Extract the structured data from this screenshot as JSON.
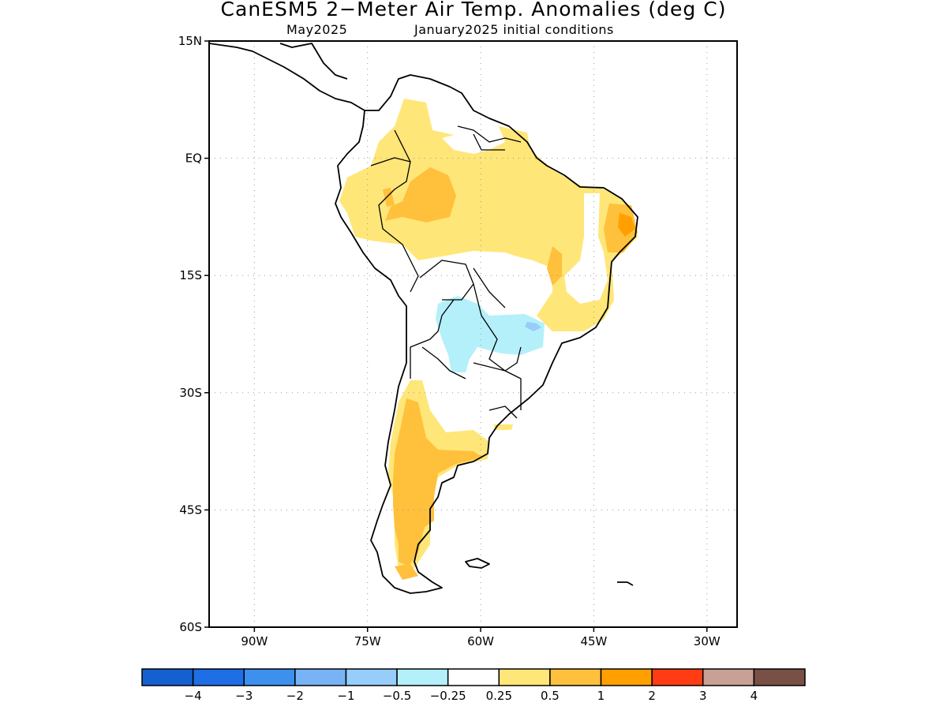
{
  "title": "CanESM5 2−Meter Air Temp. Anomalies (deg C)",
  "valid_month": "May2025",
  "init_conditions": "January2025 initial conditions",
  "lat_labels": [
    "15N",
    "EQ",
    "15S",
    "30S",
    "45S",
    "60S"
  ],
  "lon_labels": [
    "90W",
    "75W",
    "60W",
    "45W",
    "30W"
  ],
  "legend": {
    "labels": [
      "−4",
      "−3",
      "−2",
      "−1",
      "−0.5",
      "−0.25",
      "0.25",
      "0.5",
      "1",
      "2",
      "3",
      "4"
    ],
    "colors": [
      "#1560d0",
      "#1e6ee6",
      "#3d90ee",
      "#78b4f5",
      "#96cdfa",
      "#b4f0fa",
      "#ffffff",
      "#ffe678",
      "#ffc03c",
      "#ffa000",
      "#ff3c14",
      "#c8a096",
      "#785046"
    ]
  },
  "colors": {
    "land_outline": "#000000",
    "grid": "#999999",
    "anom_0_25_0_5": "#ffe678",
    "anom_0_5_1": "#ffc03c",
    "anom_1_2": "#ffa000",
    "anom_neg_0_25_0_5": "#b4f0fa",
    "anom_neg_0_5_1": "#96cdfa"
  },
  "chart_data": {
    "type": "heatmap",
    "region": "South America",
    "variable": "2-meter air temperature anomaly",
    "units": "deg C",
    "lat_range": [
      -60,
      15
    ],
    "lon_range": [
      -96,
      -26
    ],
    "anomaly_regions": [
      {
        "area": "Amazon / northern South America",
        "range": "0.25 to 0.5"
      },
      {
        "area": "western Brazil near Peru/Colombia border",
        "range": "0.5 to 1"
      },
      {
        "area": "northeastern Brazil coast",
        "range": "0.5 to 2"
      },
      {
        "area": "Paraguay / Mato Grosso do Sul",
        "range": "-0.5 to -0.25"
      },
      {
        "area": "western Argentina and Patagonia",
        "range": "0.25 to 1"
      },
      {
        "area": "central Argentina and southeastern Brazil",
        "range": "-0.25 to 0.25"
      }
    ]
  }
}
